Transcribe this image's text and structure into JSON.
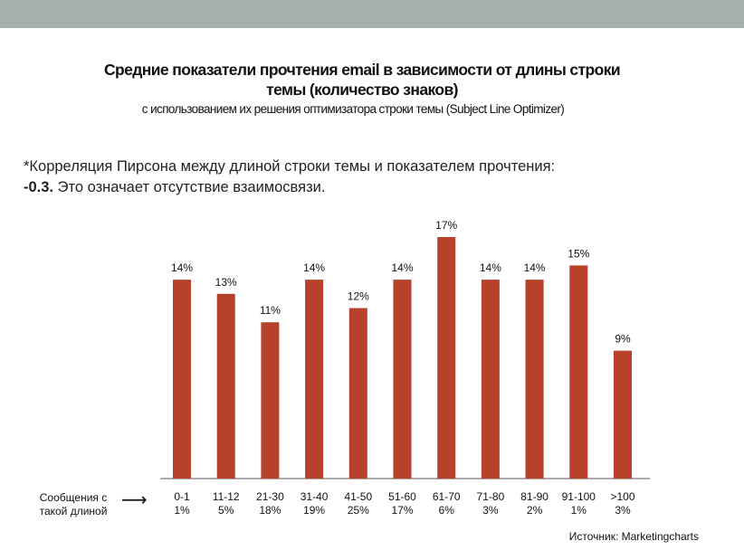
{
  "title_line1": "Средние показатели прочтения email в зависимости от длины строки",
  "title_line2": "темы (количество знаков)",
  "subtitle": "с использованием их решения оптимизатора строки темы (Subject Line Optimizer)",
  "note": {
    "line1": "*Корреляция Пирсона между длиной строки темы и показателем прочтения:",
    "value": "-0.3.",
    "line2_rest": " Это означает отсутствие взаимосвязи."
  },
  "legend": {
    "label_line1": "Сообщения с",
    "label_line2": "такой длиной",
    "arrow": "⟶"
  },
  "source": "Источник: Marketingcharts",
  "colors": {
    "bar": "#b8412c",
    "axis": "#555555",
    "band": "#a7b1ab"
  },
  "chart_data": {
    "type": "bar",
    "title": "Средние показатели прочтения email в зависимости от длины строки темы (количество знаков)",
    "categories": [
      "0-1",
      "11-12",
      "21-30",
      "31-40",
      "41-50",
      "51-60",
      "61-70",
      "71-80",
      "81-90",
      "91-100",
      ">100"
    ],
    "shares": [
      "1%",
      "5%",
      "18%",
      "19%",
      "25%",
      "17%",
      "6%",
      "3%",
      "2%",
      "1%",
      "3%"
    ],
    "values": [
      14,
      13,
      11,
      14,
      12,
      14,
      17,
      14,
      14,
      15,
      9
    ],
    "value_labels": [
      "14%",
      "13%",
      "11%",
      "14%",
      "12%",
      "14%",
      "17%",
      "14%",
      "14%",
      "15%",
      "9%"
    ],
    "ylabel": "",
    "xlabel": "",
    "ylim": [
      0,
      17
    ],
    "grid": false,
    "legend": "none"
  }
}
